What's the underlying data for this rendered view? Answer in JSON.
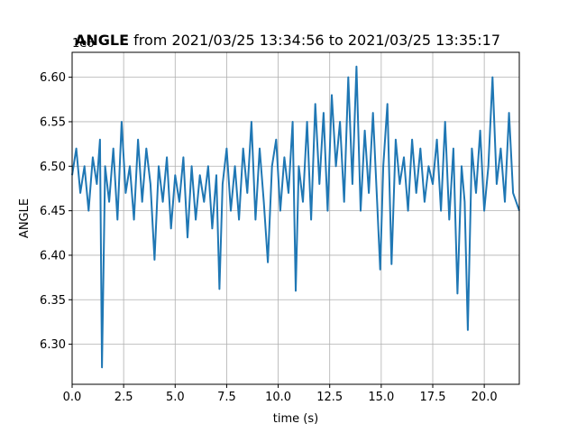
{
  "chart_data": {
    "type": "line",
    "title_bold": "ANGLE",
    "title_rest": " from 2021/03/25 13:34:56 to 2021/03/25 13:35:17",
    "xlabel": "time (s)",
    "ylabel": "ANGLE",
    "offset_label": "1e6",
    "xlim": [
      0,
      21.7
    ],
    "ylim": [
      6.255,
      6.628
    ],
    "xticks": [
      0.0,
      2.5,
      5.0,
      7.5,
      10.0,
      12.5,
      15.0,
      17.5,
      20.0
    ],
    "xtick_labels": [
      "0.0",
      "2.5",
      "5.0",
      "7.5",
      "10.0",
      "12.5",
      "15.0",
      "17.5",
      "20.0"
    ],
    "yticks": [
      6.3,
      6.35,
      6.4,
      6.45,
      6.5,
      6.55,
      6.6
    ],
    "ytick_labels": [
      "6.30",
      "6.35",
      "6.40",
      "6.45",
      "6.50",
      "6.55",
      "6.60"
    ],
    "grid": true,
    "line_color": "#1f77b4",
    "series": [
      {
        "x": [
          0.0,
          0.2,
          0.4,
          0.6,
          0.8,
          1.0,
          1.2,
          1.35,
          1.45,
          1.6,
          1.8,
          2.0,
          2.2,
          2.4,
          2.6,
          2.8,
          3.0,
          3.2,
          3.4,
          3.6,
          3.8,
          4.0,
          4.2,
          4.4,
          4.6,
          4.8,
          5.0,
          5.2,
          5.4,
          5.6,
          5.8,
          6.0,
          6.2,
          6.4,
          6.6,
          6.8,
          7.0,
          7.15,
          7.3,
          7.5,
          7.7,
          7.9,
          8.1,
          8.3,
          8.5,
          8.7,
          8.9,
          9.1,
          9.3,
          9.5,
          9.7,
          9.9,
          10.1,
          10.3,
          10.5,
          10.7,
          10.85,
          11.0,
          11.2,
          11.4,
          11.6,
          11.8,
          12.0,
          12.2,
          12.4,
          12.6,
          12.8,
          13.0,
          13.2,
          13.4,
          13.6,
          13.8,
          14.0,
          14.2,
          14.4,
          14.6,
          14.8,
          14.95,
          15.1,
          15.3,
          15.5,
          15.7,
          15.9,
          16.1,
          16.3,
          16.5,
          16.7,
          16.9,
          17.1,
          17.3,
          17.5,
          17.7,
          17.9,
          18.1,
          18.3,
          18.5,
          18.7,
          18.9,
          19.05,
          19.2,
          19.4,
          19.6,
          19.8,
          20.0,
          20.2,
          20.4,
          20.6,
          20.8,
          21.0,
          21.2,
          21.4,
          21.7
        ],
        "y": [
          6.49,
          6.52,
          6.47,
          6.5,
          6.45,
          6.51,
          6.48,
          6.53,
          6.274,
          6.5,
          6.46,
          6.52,
          6.44,
          6.55,
          6.47,
          6.5,
          6.44,
          6.53,
          6.46,
          6.52,
          6.48,
          6.395,
          6.5,
          6.46,
          6.51,
          6.43,
          6.49,
          6.46,
          6.51,
          6.42,
          6.5,
          6.44,
          6.49,
          6.46,
          6.5,
          6.43,
          6.49,
          6.362,
          6.48,
          6.52,
          6.45,
          6.5,
          6.44,
          6.52,
          6.47,
          6.55,
          6.44,
          6.52,
          6.46,
          6.392,
          6.5,
          6.53,
          6.45,
          6.51,
          6.47,
          6.55,
          6.36,
          6.5,
          6.46,
          6.55,
          6.44,
          6.57,
          6.48,
          6.56,
          6.45,
          6.58,
          6.5,
          6.55,
          6.46,
          6.6,
          6.48,
          6.612,
          6.45,
          6.54,
          6.47,
          6.56,
          6.46,
          6.384,
          6.5,
          6.57,
          6.39,
          6.53,
          6.48,
          6.51,
          6.45,
          6.53,
          6.47,
          6.52,
          6.46,
          6.5,
          6.48,
          6.53,
          6.45,
          6.55,
          6.44,
          6.52,
          6.357,
          6.5,
          6.46,
          6.316,
          6.52,
          6.47,
          6.54,
          6.45,
          6.5,
          6.6,
          6.48,
          6.52,
          6.46,
          6.56,
          6.47,
          6.45
        ]
      }
    ]
  }
}
